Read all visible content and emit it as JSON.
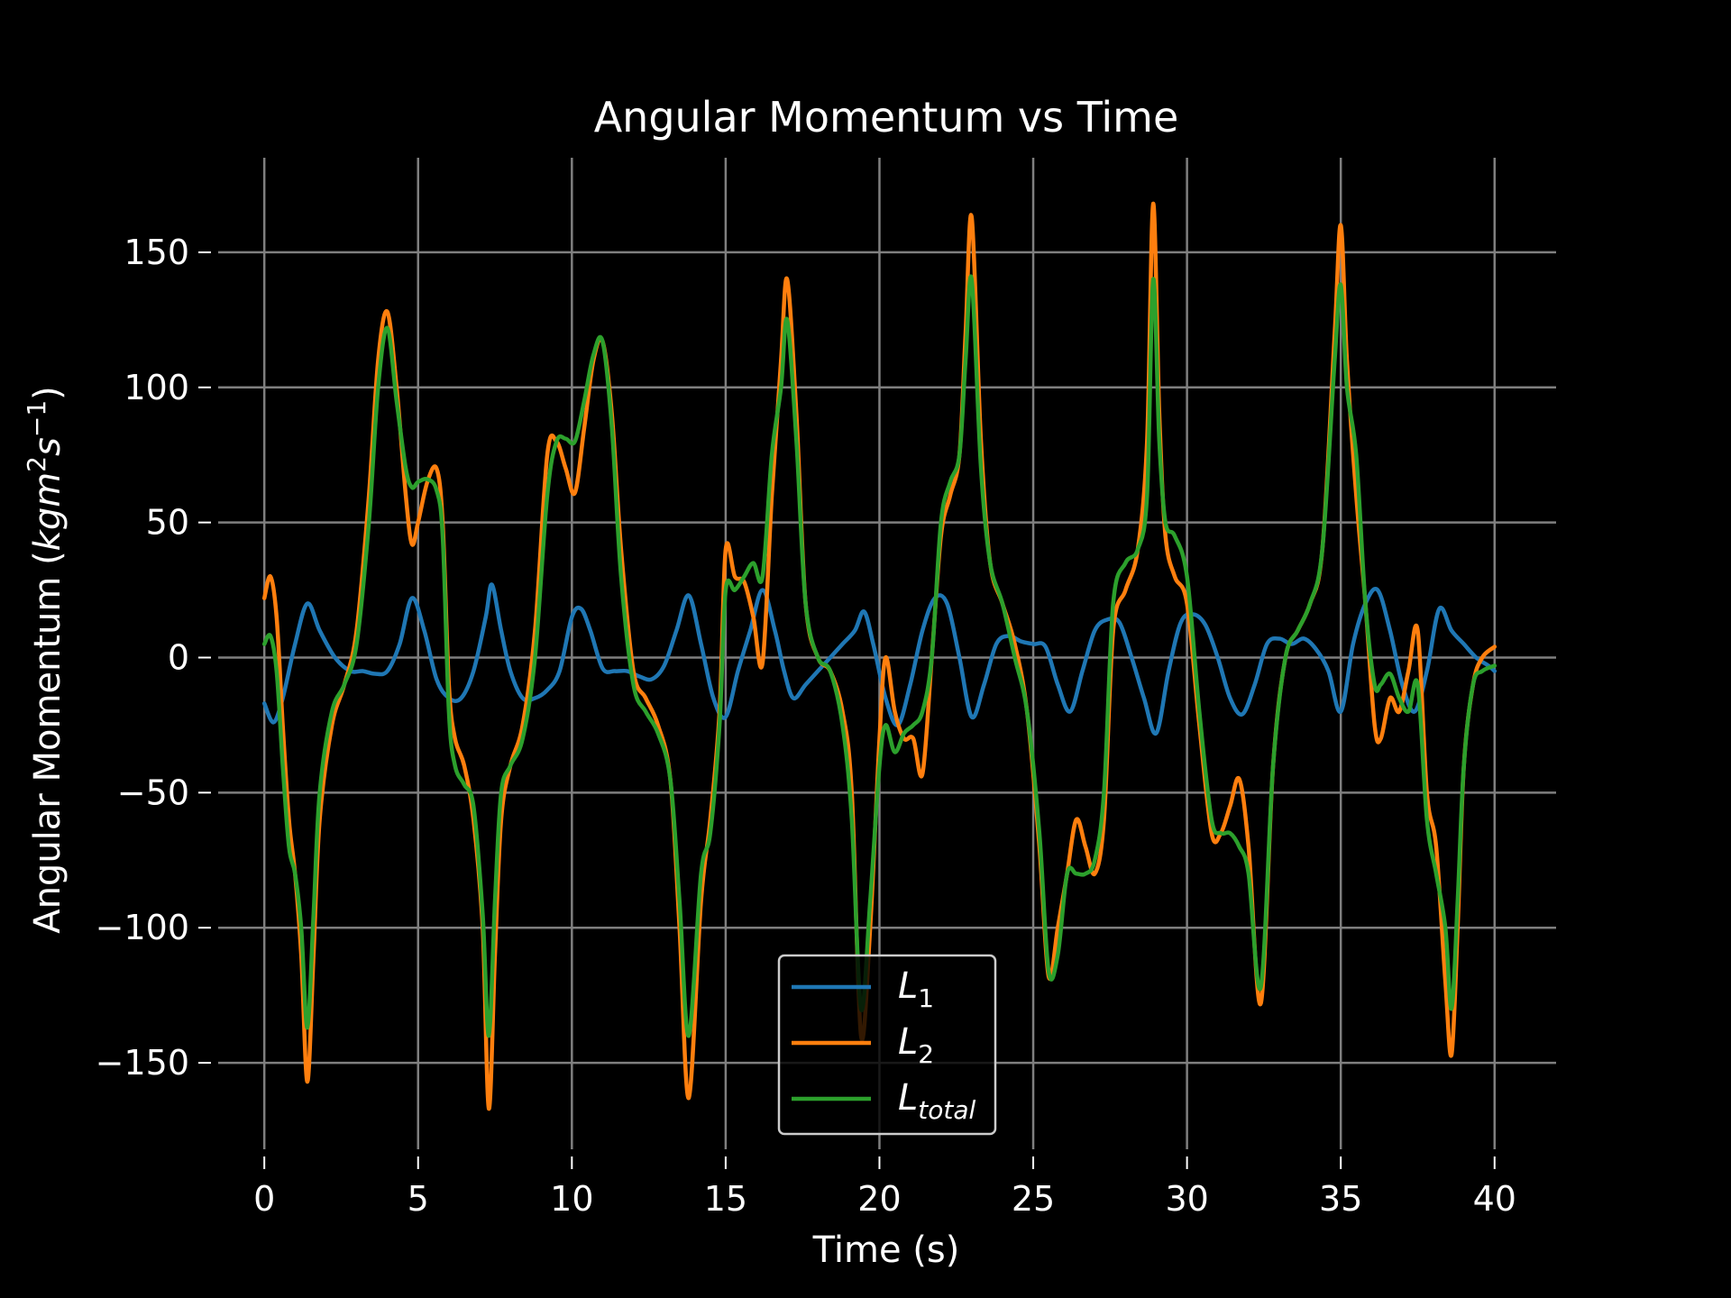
{
  "chart_data": {
    "type": "line",
    "title": "Angular Momentum vs Time",
    "xlabel": "Time (s)",
    "ylabel": "Angular Momentum (",
    "ylabel_math": "kgm",
    "ylabel_sup1": "2",
    "ylabel_math2": "s",
    "ylabel_sup2": "−1",
    "ylabel_close": ")",
    "xlim": [
      -1.5,
      42
    ],
    "ylim": [
      -182,
      185
    ],
    "xticks": [
      0,
      5,
      10,
      15,
      20,
      25,
      30,
      35,
      40
    ],
    "yticks": [
      -150,
      -100,
      -50,
      0,
      50,
      100,
      150
    ],
    "ytick_labels": [
      "−150",
      "−100",
      "−50",
      "0",
      "50",
      "100",
      "150"
    ],
    "grid": true,
    "legend_position": "bottom-center",
    "colors": {
      "background": "#000000",
      "grid": "#7f7f7f",
      "text": "#ffffff"
    },
    "series": [
      {
        "name": "L",
        "sub": "1",
        "color": "#1f77b4",
        "x": [
          0,
          0.3,
          0.6,
          1.0,
          1.4,
          1.8,
          2.3,
          2.8,
          3.2,
          3.6,
          4.0,
          4.4,
          4.8,
          5.2,
          5.6,
          6.0,
          6.4,
          6.8,
          7.2,
          7.4,
          7.7,
          8.0,
          8.4,
          8.8,
          9.2,
          9.6,
          10.0,
          10.3,
          10.6,
          11.0,
          11.4,
          11.8,
          12.2,
          12.6,
          13.0,
          13.4,
          13.8,
          14.2,
          14.6,
          15.0,
          15.4,
          15.8,
          16.2,
          16.6,
          16.9,
          17.2,
          17.6,
          18.0,
          18.4,
          18.8,
          19.2,
          19.5,
          19.8,
          20.2,
          20.6,
          21.0,
          21.4,
          21.8,
          22.2,
          22.6,
          23.0,
          23.4,
          23.8,
          24.2,
          24.6,
          25.0,
          25.4,
          25.8,
          26.2,
          26.6,
          27.0,
          27.4,
          27.8,
          28.2,
          28.6,
          29.0,
          29.4,
          29.8,
          30.2,
          30.6,
          31.0,
          31.4,
          31.8,
          32.2,
          32.6,
          33.0,
          33.4,
          33.8,
          34.2,
          34.6,
          35.0,
          35.4,
          35.8,
          36.2,
          36.6,
          37.0,
          37.4,
          37.8,
          38.2,
          38.6,
          39.0,
          39.4,
          39.8,
          40.0
        ],
        "y": [
          -17,
          -24,
          -15,
          5,
          20,
          10,
          0,
          -5,
          -5,
          -6,
          -5,
          5,
          22,
          10,
          -8,
          -15,
          -15,
          -5,
          15,
          27,
          10,
          -5,
          -15,
          -15,
          -12,
          -5,
          15,
          18,
          10,
          -4,
          -5,
          -5,
          -7,
          -8,
          -3,
          10,
          23,
          5,
          -15,
          -22,
          -5,
          10,
          25,
          10,
          -5,
          -15,
          -10,
          -5,
          0,
          5,
          10,
          17,
          5,
          -15,
          -25,
          -10,
          10,
          22,
          20,
          0,
          -22,
          -10,
          5,
          8,
          6,
          5,
          4,
          -10,
          -20,
          -5,
          10,
          14,
          13,
          0,
          -15,
          -28,
          -5,
          13,
          16,
          12,
          0,
          -15,
          -21,
          -10,
          5,
          7,
          5,
          7,
          3,
          -5,
          -20,
          5,
          20,
          25,
          10,
          -10,
          -20,
          -5,
          18,
          10,
          5,
          0,
          -3,
          -5
        ]
      },
      {
        "name": "L",
        "sub": "2",
        "color": "#ff7f0e",
        "x": [
          0,
          0.2,
          0.4,
          0.6,
          0.8,
          1.0,
          1.2,
          1.4,
          1.6,
          1.8,
          2.2,
          2.6,
          3.0,
          3.4,
          3.7,
          4.0,
          4.3,
          4.6,
          4.8,
          5.0,
          5.3,
          5.6,
          5.8,
          6.0,
          6.2,
          6.5,
          6.8,
          7.1,
          7.3,
          7.5,
          7.7,
          8.0,
          8.4,
          8.8,
          9.2,
          9.5,
          9.8,
          10.1,
          10.4,
          10.7,
          11.0,
          11.3,
          11.6,
          12.0,
          12.4,
          12.8,
          13.2,
          13.5,
          13.8,
          14.2,
          14.5,
          14.8,
          15.0,
          15.3,
          15.6,
          15.9,
          16.2,
          16.5,
          16.8,
          17.0,
          17.3,
          17.6,
          18.0,
          18.4,
          18.8,
          19.1,
          19.4,
          19.7,
          20.0,
          20.2,
          20.5,
          20.8,
          21.1,
          21.4,
          21.7,
          22.0,
          22.3,
          22.6,
          22.8,
          23.0,
          23.3,
          23.6,
          24.0,
          24.4,
          24.8,
          25.2,
          25.5,
          25.8,
          26.1,
          26.4,
          26.7,
          27.0,
          27.3,
          27.6,
          28.0,
          28.4,
          28.7,
          28.9,
          29.1,
          29.3,
          29.6,
          30.0,
          30.4,
          30.8,
          31.1,
          31.4,
          31.7,
          32.0,
          32.4,
          32.8,
          33.2,
          33.6,
          34.0,
          34.4,
          34.8,
          35.0,
          35.2,
          35.5,
          35.8,
          36.1,
          36.3,
          36.6,
          36.9,
          37.2,
          37.5,
          37.8,
          38.1,
          38.4,
          38.6,
          38.8,
          39.0,
          39.3,
          39.6,
          40.0
        ],
        "y": [
          22,
          30,
          15,
          -25,
          -60,
          -80,
          -110,
          -157,
          -110,
          -60,
          -25,
          -10,
          10,
          60,
          110,
          128,
          100,
          60,
          42,
          50,
          65,
          70,
          50,
          -10,
          -30,
          -40,
          -60,
          -100,
          -167,
          -110,
          -60,
          -40,
          -25,
          10,
          75,
          80,
          70,
          61,
          85,
          110,
          117,
          90,
          40,
          -5,
          -15,
          -25,
          -45,
          -100,
          -163,
          -90,
          -60,
          -20,
          40,
          30,
          28,
          15,
          -2,
          60,
          110,
          140,
          90,
          20,
          0,
          -5,
          -20,
          -50,
          -140,
          -100,
          -30,
          0,
          -20,
          -30,
          -30,
          -43,
          0,
          45,
          60,
          75,
          120,
          163,
          80,
          35,
          20,
          5,
          -20,
          -70,
          -118,
          -100,
          -80,
          -60,
          -70,
          -80,
          -60,
          10,
          25,
          40,
          80,
          168,
          90,
          45,
          30,
          20,
          -25,
          -65,
          -65,
          -55,
          -45,
          -70,
          -128,
          -40,
          0,
          10,
          20,
          40,
          120,
          160,
          110,
          60,
          20,
          -25,
          -30,
          -15,
          -20,
          -5,
          10,
          -50,
          -70,
          -120,
          -147,
          -100,
          -40,
          -10,
          0,
          4
        ]
      },
      {
        "name": "L",
        "sub": "total",
        "color": "#2ca02c",
        "x": [
          0,
          0.2,
          0.4,
          0.6,
          0.8,
          1.0,
          1.2,
          1.4,
          1.6,
          1.8,
          2.2,
          2.6,
          3.0,
          3.4,
          3.7,
          4.0,
          4.3,
          4.6,
          4.8,
          5.0,
          5.3,
          5.6,
          5.8,
          6.0,
          6.2,
          6.5,
          6.8,
          7.1,
          7.3,
          7.5,
          7.7,
          8.0,
          8.4,
          8.8,
          9.2,
          9.5,
          9.8,
          10.1,
          10.4,
          10.7,
          11.0,
          11.3,
          11.6,
          12.0,
          12.4,
          12.8,
          13.2,
          13.5,
          13.8,
          14.2,
          14.5,
          14.8,
          15.0,
          15.3,
          15.6,
          15.9,
          16.2,
          16.5,
          16.8,
          17.0,
          17.3,
          17.6,
          18.0,
          18.4,
          18.8,
          19.1,
          19.4,
          19.7,
          20.0,
          20.2,
          20.5,
          20.8,
          21.1,
          21.4,
          21.7,
          22.0,
          22.3,
          22.6,
          22.8,
          23.0,
          23.3,
          23.6,
          24.0,
          24.4,
          24.8,
          25.2,
          25.5,
          25.8,
          26.1,
          26.4,
          26.7,
          27.0,
          27.3,
          27.6,
          28.0,
          28.4,
          28.7,
          28.9,
          29.1,
          29.3,
          29.6,
          30.0,
          30.4,
          30.8,
          31.1,
          31.4,
          31.7,
          32.0,
          32.4,
          32.8,
          33.2,
          33.6,
          34.0,
          34.4,
          34.8,
          35.0,
          35.2,
          35.5,
          35.8,
          36.1,
          36.3,
          36.6,
          36.9,
          37.2,
          37.5,
          37.8,
          38.1,
          38.4,
          38.6,
          38.8,
          39.0,
          39.3,
          39.6,
          40.0
        ],
        "y": [
          5,
          8,
          -5,
          -40,
          -70,
          -80,
          -100,
          -137,
          -95,
          -50,
          -20,
          -10,
          5,
          50,
          100,
          122,
          95,
          70,
          63,
          65,
          66,
          62,
          45,
          -20,
          -40,
          -47,
          -55,
          -95,
          -140,
          -90,
          -50,
          -40,
          -30,
          0,
          60,
          80,
          81,
          80,
          95,
          112,
          117,
          85,
          30,
          -10,
          -20,
          -28,
          -45,
          -90,
          -140,
          -80,
          -65,
          -25,
          25,
          25,
          30,
          35,
          30,
          75,
          100,
          125,
          80,
          20,
          0,
          -5,
          -25,
          -60,
          -130,
          -90,
          -40,
          -25,
          -35,
          -28,
          -25,
          -20,
          0,
          50,
          65,
          75,
          110,
          140,
          70,
          35,
          20,
          0,
          -20,
          -65,
          -116,
          -110,
          -80,
          -80,
          -80,
          -75,
          -50,
          20,
          35,
          40,
          60,
          140,
          80,
          50,
          45,
          30,
          -20,
          -60,
          -65,
          -65,
          -70,
          -80,
          -122,
          -40,
          0,
          10,
          20,
          40,
          110,
          138,
          100,
          75,
          20,
          -10,
          -10,
          -6,
          -15,
          -20,
          -10,
          -60,
          -80,
          -100,
          -130,
          -90,
          -40,
          -10,
          -5,
          -3
        ]
      }
    ]
  }
}
